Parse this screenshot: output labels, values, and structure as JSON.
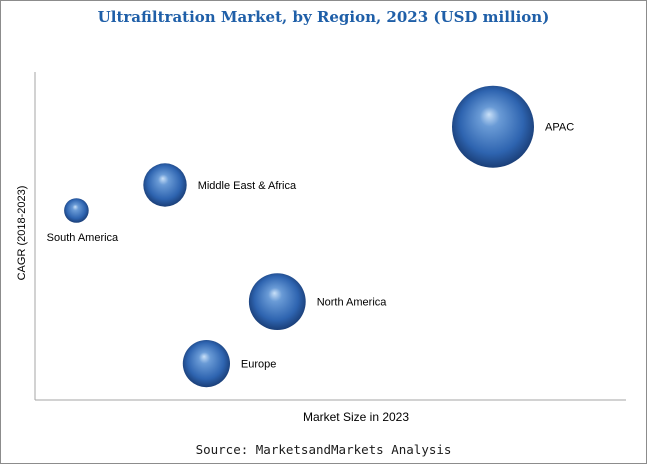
{
  "chart_data": {
    "type": "bubble",
    "title": "Ultrafiltration Market, by Region, 2023 (USD million)",
    "xlabel": "Market Size in 2023",
    "ylabel": "CAGR (2018-2023)",
    "axis_ticks": "none",
    "grid": false,
    "legend": "none",
    "bubble_color": "#2e64b0",
    "points": [
      {
        "label": "APAC",
        "x": 7.75,
        "y": 7.5,
        "size": 1.0
      },
      {
        "label": "Middle East & Africa",
        "x": 2.2,
        "y": 5.9,
        "size": 0.28
      },
      {
        "label": "South America",
        "x": 0.7,
        "y": 5.2,
        "size": 0.09
      },
      {
        "label": "North America",
        "x": 4.1,
        "y": 2.7,
        "size": 0.48
      },
      {
        "label": "Europe",
        "x": 2.9,
        "y": 1.0,
        "size": 0.33
      }
    ]
  },
  "source": "Source: MarketsandMarkets Analysis"
}
